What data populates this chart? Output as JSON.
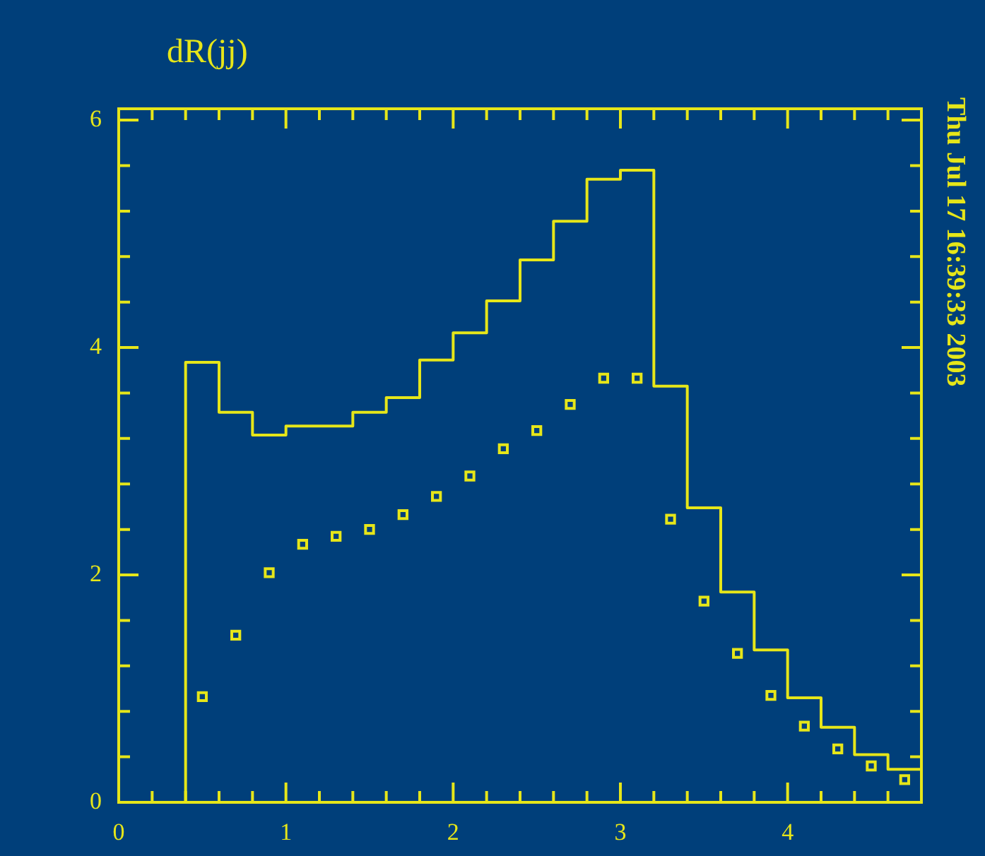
{
  "chart_data": {
    "type": "histogram",
    "title": "dR(jj)",
    "annotations": [
      "Thu Jul 17 16:39:33 2003"
    ],
    "xlim": [
      0,
      4.8
    ],
    "ylim": [
      0,
      6.1
    ],
    "xticks": [
      0,
      {
        "value": 0.2,
        "label": null
      },
      {
        "value": 0.4,
        "label": null
      },
      {
        "value": 0.6,
        "label": null
      },
      {
        "value": 0.8,
        "label": null
      },
      1,
      {
        "value": 1.2,
        "label": null
      },
      {
        "value": 1.4,
        "label": null
      },
      {
        "value": 1.6,
        "label": null
      },
      {
        "value": 1.8,
        "label": null
      },
      2,
      {
        "value": 2.2,
        "label": null
      },
      {
        "value": 2.4,
        "label": null
      },
      {
        "value": 2.6,
        "label": null
      },
      {
        "value": 2.8,
        "label": null
      },
      3,
      {
        "value": 3.2,
        "label": null
      },
      {
        "value": 3.4,
        "label": null
      },
      {
        "value": 3.6,
        "label": null
      },
      {
        "value": 3.8,
        "label": null
      },
      4,
      {
        "value": 4.2,
        "label": null
      },
      {
        "value": 4.4,
        "label": null
      },
      {
        "value": 4.6,
        "label": null
      }
    ],
    "yticks": [
      0,
      {
        "value": 0.4,
        "label": null
      },
      {
        "value": 0.8,
        "label": null
      },
      {
        "value": 1.2,
        "label": null
      },
      {
        "value": 1.6,
        "label": null
      },
      2,
      {
        "value": 2.4,
        "label": null
      },
      {
        "value": 2.8,
        "label": null
      },
      {
        "value": 3.2,
        "label": null
      },
      {
        "value": 3.6,
        "label": null
      },
      4,
      {
        "value": 4.4,
        "label": null
      },
      {
        "value": 4.8,
        "label": null
      },
      {
        "value": 5.2,
        "label": null
      },
      {
        "value": 5.6,
        "label": null
      },
      6
    ],
    "series": [
      {
        "type": "histogram",
        "color": "#e6e619",
        "bins": [
          0.4,
          0.6,
          0.8,
          1.0,
          1.2,
          1.4,
          1.6,
          1.8,
          2.0,
          2.2,
          2.4,
          2.6,
          2.8,
          3.0,
          3.2,
          3.4,
          3.6,
          3.8,
          4.0,
          4.2,
          4.4,
          4.6,
          4.8
        ],
        "values": [
          3.87,
          3.43,
          3.23,
          3.31,
          3.31,
          3.43,
          3.56,
          3.89,
          4.13,
          4.41,
          4.77,
          5.11,
          5.48,
          5.56,
          3.66,
          2.59,
          1.85,
          1.34,
          0.92,
          0.66,
          0.42,
          0.29
        ]
      },
      {
        "type": "scatter",
        "color": "#e6e619",
        "marker": "square",
        "x": [
          0.5,
          0.7,
          0.9,
          1.1,
          1.3,
          1.5,
          1.7,
          1.9,
          2.1,
          2.3,
          2.5,
          2.7,
          2.9,
          3.1,
          3.3,
          3.5,
          3.7,
          3.9,
          4.1,
          4.3,
          4.5,
          4.7
        ],
        "values": [
          0.93,
          1.47,
          2.02,
          2.27,
          2.34,
          2.4,
          2.53,
          2.69,
          2.87,
          3.11,
          3.27,
          3.5,
          3.73,
          3.73,
          2.49,
          1.77,
          1.31,
          0.94,
          0.67,
          0.47,
          0.32,
          0.2
        ]
      }
    ]
  }
}
